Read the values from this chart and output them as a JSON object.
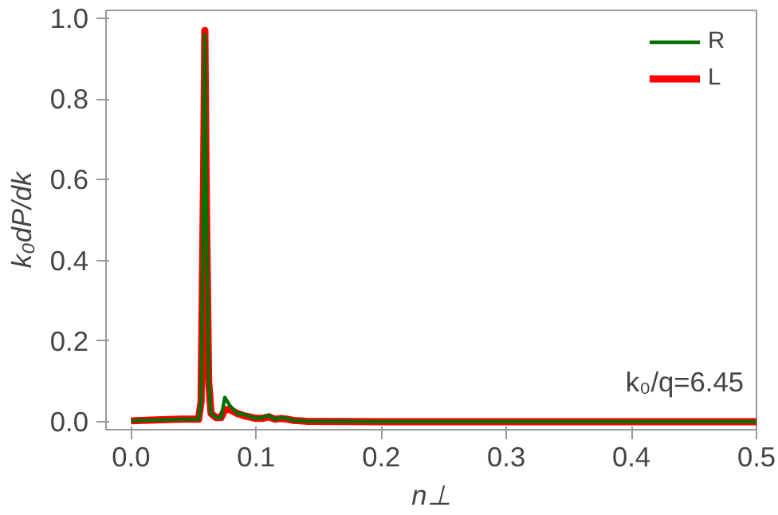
{
  "chart_data": {
    "type": "line",
    "xlabel": "n⊥",
    "ylabel": "k₀dP/dk",
    "annotations": [
      "k₀/q=6.45"
    ],
    "xlim": [
      -0.02,
      0.5
    ],
    "ylim": [
      -0.02,
      1.02
    ],
    "xticks": [
      {
        "value": 0.0,
        "label": "0.0"
      },
      {
        "value": 0.1,
        "label": "0.1"
      },
      {
        "value": 0.2,
        "label": "0.2"
      },
      {
        "value": 0.3,
        "label": "0.3"
      },
      {
        "value": 0.4,
        "label": "0.4"
      },
      {
        "value": 0.5,
        "label": "0.5"
      }
    ],
    "yticks": [
      {
        "value": 0.0,
        "label": "0.0"
      },
      {
        "value": 0.2,
        "label": "0.2"
      },
      {
        "value": 0.4,
        "label": "0.4"
      },
      {
        "value": 0.6,
        "label": "0.6"
      },
      {
        "value": 0.8,
        "label": "0.8"
      },
      {
        "value": 1.0,
        "label": "1.0"
      }
    ],
    "grid": false,
    "legend": "top right",
    "line_style": "solid",
    "marker": "none",
    "series": [
      {
        "name": "L",
        "color": "#ff0000",
        "x": [
          0,
          0.02,
          0.04,
          0.054,
          0.056,
          0.058,
          0.059,
          0.06,
          0.062,
          0.064,
          0.068,
          0.072,
          0.075,
          0.079,
          0.085,
          0.09,
          0.1,
          0.105,
          0.11,
          0.115,
          0.12,
          0.125,
          0.13,
          0.14,
          0.2,
          0.3,
          0.4,
          0.5
        ],
        "values": [
          0.002,
          0.004,
          0.006,
          0.006,
          0.05,
          0.6,
          0.97,
          0.6,
          0.1,
          0.02,
          0.01,
          0.01,
          0.03,
          0.03,
          0.02,
          0.015,
          0.008,
          0.008,
          0.012,
          0.006,
          0.008,
          0.006,
          0.003,
          0.001,
          0,
          0,
          0,
          0
        ]
      },
      {
        "name": "R",
        "color": "#007000",
        "x": [
          0,
          0.02,
          0.04,
          0.054,
          0.056,
          0.058,
          0.059,
          0.06,
          0.062,
          0.064,
          0.068,
          0.072,
          0.075,
          0.079,
          0.085,
          0.09,
          0.1,
          0.105,
          0.11,
          0.115,
          0.12,
          0.125,
          0.13,
          0.14,
          0.2,
          0.3,
          0.4,
          0.5
        ],
        "values": [
          0.002,
          0.004,
          0.006,
          0.006,
          0.05,
          0.6,
          0.96,
          0.6,
          0.1,
          0.02,
          0.01,
          0.01,
          0.06,
          0.04,
          0.02,
          0.018,
          0.008,
          0.01,
          0.016,
          0.006,
          0.01,
          0.008,
          0.003,
          0.001,
          0,
          0,
          0,
          0
        ]
      }
    ]
  }
}
